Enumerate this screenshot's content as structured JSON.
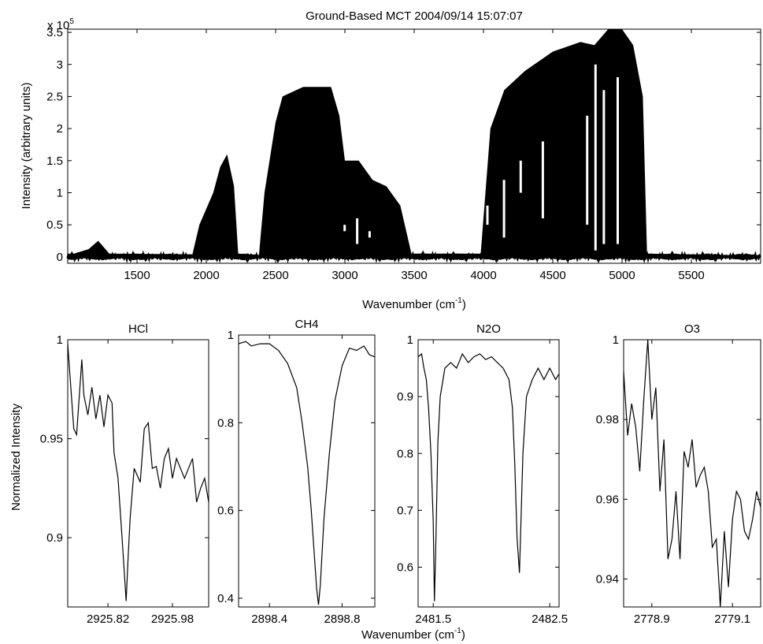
{
  "figure": {
    "top_title": "Ground-Based MCT 2004/09/14 15:07:07",
    "exponent_base": "x 10",
    "exponent_power": "5",
    "top_xlabel_main": "Wavenumber (cm",
    "top_xlabel_sup": "-1",
    "top_xlabel_close": ")",
    "top_ylabel": "Intensity (arbitrary units)",
    "bottom_ylabel": "Normalized Intensity",
    "bottom_xlabel_main": "Wavenumber (cm",
    "bottom_xlabel_sup": "-1",
    "bottom_xlabel_close": ")"
  },
  "chart_data": [
    {
      "id": "spectrum",
      "type": "area",
      "title": "Ground-Based MCT 2004/09/14 15:07:07",
      "xlabel": "Wavenumber (cm-1)",
      "ylabel": "Intensity (arbitrary units)",
      "y_scale_note": "x 10^5",
      "xlim": [
        1000,
        6000
      ],
      "ylim": [
        -0.1,
        3.55
      ],
      "xticks": [
        1500,
        2000,
        2500,
        3000,
        3500,
        4000,
        4500,
        5000,
        5500
      ],
      "yticks": [
        0,
        0.5,
        1,
        1.5,
        2,
        2.5,
        3,
        3.5
      ],
      "ytick_labels": [
        "0",
        "0.5",
        "1",
        "1.5",
        "2",
        "2.5",
        "3",
        "3.5"
      ],
      "envelope": [
        [
          1000,
          0.02
        ],
        [
          1150,
          0.12
        ],
        [
          1220,
          0.25
        ],
        [
          1300,
          0.05
        ],
        [
          1900,
          0.04
        ],
        [
          1950,
          0.5
        ],
        [
          2050,
          1.0
        ],
        [
          2100,
          1.4
        ],
        [
          2150,
          1.6
        ],
        [
          2200,
          1.1
        ],
        [
          2230,
          0.05
        ],
        [
          2380,
          0.03
        ],
        [
          2420,
          1.0
        ],
        [
          2500,
          2.1
        ],
        [
          2550,
          2.5
        ],
        [
          2700,
          2.65
        ],
        [
          2900,
          2.65
        ],
        [
          2960,
          2.2
        ],
        [
          3000,
          1.5
        ],
        [
          3100,
          1.5
        ],
        [
          3200,
          1.2
        ],
        [
          3300,
          1.1
        ],
        [
          3400,
          0.8
        ],
        [
          3480,
          0.05
        ],
        [
          3980,
          0.05
        ],
        [
          4050,
          2.0
        ],
        [
          4150,
          2.6
        ],
        [
          4300,
          2.9
        ],
        [
          4500,
          3.2
        ],
        [
          4700,
          3.35
        ],
        [
          4800,
          3.3
        ],
        [
          4900,
          3.55
        ],
        [
          5000,
          3.55
        ],
        [
          5080,
          3.3
        ],
        [
          5150,
          2.5
        ],
        [
          5180,
          0.05
        ],
        [
          6000,
          0.02
        ]
      ]
    },
    {
      "id": "hcl",
      "type": "line",
      "title": "HCl",
      "xlim": [
        2925.72,
        2926.07
      ],
      "ylim": [
        0.865,
        1.0
      ],
      "xticks": [
        2925.82,
        2925.98
      ],
      "xtick_labels": [
        "2925.82",
        "2925.98"
      ],
      "yticks": [
        0.9,
        0.95,
        1.0
      ],
      "ytick_labels": [
        "0.9",
        "0.95",
        "1"
      ],
      "x": [
        2925.72,
        2925.735,
        2925.742,
        2925.755,
        2925.76,
        2925.77,
        2925.78,
        2925.79,
        2925.8,
        2925.81,
        2925.82,
        2925.83,
        2925.835,
        2925.845,
        2925.855,
        2925.865,
        2925.87,
        2925.875,
        2925.885,
        2925.9,
        2925.91,
        2925.92,
        2925.93,
        2925.94,
        2925.95,
        2925.96,
        2925.97,
        2925.98,
        2925.99,
        2926.0,
        2926.01,
        2926.02,
        2926.03,
        2926.04,
        2926.05,
        2926.06,
        2926.07
      ],
      "y": [
        0.998,
        0.955,
        0.952,
        0.99,
        0.972,
        0.962,
        0.976,
        0.96,
        0.972,
        0.956,
        0.972,
        0.968,
        0.943,
        0.93,
        0.9,
        0.868,
        0.89,
        0.91,
        0.935,
        0.928,
        0.955,
        0.958,
        0.935,
        0.936,
        0.925,
        0.94,
        0.945,
        0.93,
        0.94,
        0.935,
        0.93,
        0.935,
        0.94,
        0.918,
        0.925,
        0.93,
        0.918
      ]
    },
    {
      "id": "ch4",
      "type": "line",
      "title": "CH4",
      "xlim": [
        2898.23,
        2898.98
      ],
      "ylim": [
        0.38,
        1.0
      ],
      "xticks": [
        2898.4,
        2898.8
      ],
      "xtick_labels": [
        "2898.4",
        "2898.8"
      ],
      "yticks": [
        0.4,
        0.6,
        0.8,
        1.0
      ],
      "ytick_labels": [
        "0.4",
        "0.6",
        "0.8",
        "1"
      ],
      "x": [
        2898.23,
        2898.27,
        2898.3,
        2898.35,
        2898.4,
        2898.45,
        2898.5,
        2898.55,
        2898.58,
        2898.61,
        2898.63,
        2898.65,
        2898.66,
        2898.67,
        2898.68,
        2898.7,
        2898.73,
        2898.76,
        2898.8,
        2898.84,
        2898.88,
        2898.92,
        2898.95,
        2898.98
      ],
      "y": [
        0.98,
        0.985,
        0.975,
        0.98,
        0.98,
        0.965,
        0.935,
        0.88,
        0.8,
        0.7,
        0.6,
        0.48,
        0.42,
        0.385,
        0.43,
        0.58,
        0.73,
        0.85,
        0.93,
        0.97,
        0.965,
        0.975,
        0.955,
        0.95
      ]
    },
    {
      "id": "n2o",
      "type": "line",
      "title": "N2O",
      "xlim": [
        2481.37,
        2482.58
      ],
      "ylim": [
        0.53,
        1.0
      ],
      "xticks": [
        2481.5,
        2482.5
      ],
      "xtick_labels": [
        "2481.5",
        "2482.5"
      ],
      "yticks": [
        0.6,
        0.7,
        0.8,
        0.9,
        1.0
      ],
      "ytick_labels": [
        "0.6",
        "0.7",
        "0.8",
        "0.9",
        "1"
      ],
      "x": [
        2481.37,
        2481.4,
        2481.42,
        2481.44,
        2481.46,
        2481.48,
        2481.5,
        2481.51,
        2481.52,
        2481.54,
        2481.56,
        2481.6,
        2481.65,
        2481.7,
        2481.75,
        2481.8,
        2481.85,
        2481.9,
        2481.95,
        2482.0,
        2482.05,
        2482.1,
        2482.15,
        2482.18,
        2482.2,
        2482.22,
        2482.24,
        2482.25,
        2482.27,
        2482.3,
        2482.35,
        2482.4,
        2482.45,
        2482.5,
        2482.55,
        2482.58
      ],
      "y": [
        0.97,
        0.975,
        0.95,
        0.93,
        0.88,
        0.8,
        0.68,
        0.54,
        0.62,
        0.82,
        0.9,
        0.95,
        0.96,
        0.95,
        0.975,
        0.96,
        0.97,
        0.975,
        0.965,
        0.97,
        0.96,
        0.95,
        0.93,
        0.88,
        0.78,
        0.65,
        0.59,
        0.66,
        0.8,
        0.9,
        0.93,
        0.95,
        0.93,
        0.95,
        0.93,
        0.94
      ]
    },
    {
      "id": "o3",
      "type": "line",
      "title": "O3",
      "xlim": [
        2778.83,
        2779.17
      ],
      "ylim": [
        0.933,
        1.0
      ],
      "xticks": [
        2778.9,
        2779.1
      ],
      "xtick_labels": [
        "2778.9",
        "2779.1"
      ],
      "yticks": [
        0.94,
        0.96,
        0.98,
        1.0
      ],
      "ytick_labels": [
        "0.94",
        "0.96",
        "0.98",
        "1"
      ],
      "x": [
        2778.83,
        2778.84,
        2778.85,
        2778.86,
        2778.87,
        2778.88,
        2778.89,
        2778.9,
        2778.91,
        2778.92,
        2778.93,
        2778.94,
        2778.95,
        2778.96,
        2778.97,
        2778.98,
        2778.99,
        2779.0,
        2779.01,
        2779.02,
        2779.03,
        2779.04,
        2779.05,
        2779.06,
        2779.07,
        2779.08,
        2779.09,
        2779.1,
        2779.11,
        2779.12,
        2779.13,
        2779.14,
        2779.15,
        2779.16,
        2779.17
      ],
      "y": [
        0.992,
        0.976,
        0.984,
        0.978,
        0.967,
        0.985,
        1.0,
        0.98,
        0.988,
        0.962,
        0.975,
        0.945,
        0.95,
        0.962,
        0.945,
        0.972,
        0.968,
        0.975,
        0.963,
        0.966,
        0.968,
        0.962,
        0.948,
        0.95,
        0.933,
        0.952,
        0.938,
        0.955,
        0.962,
        0.96,
        0.952,
        0.95,
        0.955,
        0.962,
        0.958
      ]
    }
  ]
}
